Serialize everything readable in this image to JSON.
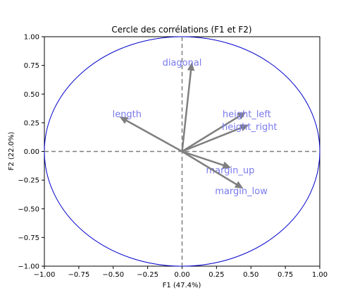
{
  "chart_data": {
    "type": "scatter",
    "subtype": "correlation-circle",
    "title": "Cercle des corrélations (F1 et F2)",
    "xlabel": "F1 (47.4%)",
    "ylabel": "F2 (22.0%)",
    "xlim": [
      -1.0,
      1.0
    ],
    "ylim": [
      -1.0,
      1.0
    ],
    "x_ticks": [
      -1.0,
      -0.75,
      -0.5,
      -0.25,
      0.0,
      0.25,
      0.5,
      0.75,
      1.0
    ],
    "y_ticks": [
      -1.0,
      -0.75,
      -0.5,
      -0.25,
      0.0,
      0.25,
      0.5,
      0.75,
      1.0
    ],
    "x_tick_labels": [
      "−1.00",
      "−0.75",
      "−0.50",
      "−0.25",
      "0.00",
      "0.25",
      "0.50",
      "0.75",
      "1.00"
    ],
    "y_tick_labels": [
      "−1.00",
      "−0.75",
      "−0.50",
      "−0.25",
      "0.00",
      "0.25",
      "0.50",
      "0.75",
      "1.00"
    ],
    "grid": false,
    "legend": "none",
    "circle_color": "#0000cc",
    "arrow_color": "#7f7f7f",
    "label_color": "#7a7aee",
    "reference_line_color": "#7f7f7f",
    "variables": [
      {
        "name": "diagonal",
        "x": 0.07,
        "y": 0.77,
        "label_x": 0.0,
        "label_y": 0.78
      },
      {
        "name": "length",
        "x": -0.45,
        "y": 0.3,
        "label_x": -0.4,
        "label_y": 0.33
      },
      {
        "name": "height_left",
        "x": 0.46,
        "y": 0.34,
        "label_x": 0.47,
        "label_y": 0.33
      },
      {
        "name": "height_right",
        "x": 0.48,
        "y": 0.23,
        "label_x": 0.49,
        "label_y": 0.22
      },
      {
        "name": "margin_up",
        "x": 0.35,
        "y": -0.14,
        "label_x": 0.35,
        "label_y": -0.16
      },
      {
        "name": "margin_low",
        "x": 0.44,
        "y": -0.32,
        "label_x": 0.43,
        "label_y": -0.34
      }
    ]
  }
}
